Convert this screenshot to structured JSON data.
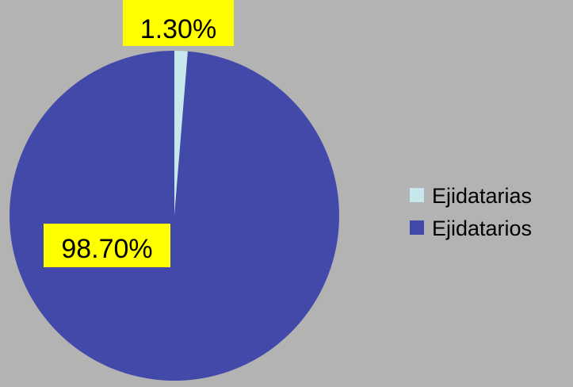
{
  "chart_data": {
    "type": "pie",
    "title": "",
    "categories": [
      "Ejidatarias",
      "Ejidatarios"
    ],
    "values": [
      1.3,
      98.7
    ],
    "data_labels": [
      "1.30%",
      "98.70%"
    ],
    "colors": [
      "#c6e8ec",
      "#4249a9"
    ],
    "legend_position": "right",
    "data_label_background": "#ffff00",
    "start_angle": "12 o'clock, clockwise"
  }
}
